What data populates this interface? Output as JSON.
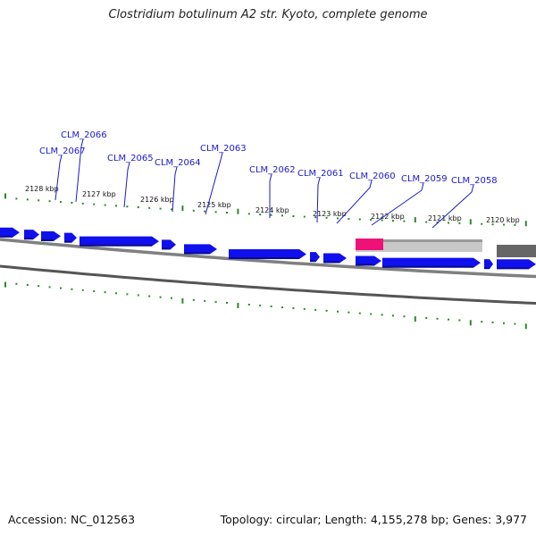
{
  "title": "Clostridium botulinum A2 str. Kyoto, complete genome",
  "footer": {
    "accession": "Accession: NC_012563",
    "summary": "Topology: circular; Length: 4,155,278 bp; Genes: 3,977"
  },
  "colors": {
    "gene": "#1010ee",
    "gene_shadow": "#0a0a90",
    "tick": "#2a8a2a",
    "backbone": "#808080",
    "highlight": "#ee1177",
    "gray_bar": "#c8c8c8",
    "dark_bar": "#666666",
    "label": "#1a1acc"
  },
  "scale_labels": [
    "2128 kbp",
    "2127 kbp",
    "2126 kbp",
    "2125 kbp",
    "2124 kbp",
    "2123 kbp",
    "2122 kbp",
    "2121 kbp",
    "2120 kbp"
  ],
  "gene_labels": [
    "CLM_2067",
    "CLM_2066",
    "CLM_2065",
    "CLM_2064",
    "CLM_2063",
    "CLM_2062",
    "CLM_2061",
    "CLM_2060",
    "CLM_2059",
    "CLM_2058"
  ]
}
